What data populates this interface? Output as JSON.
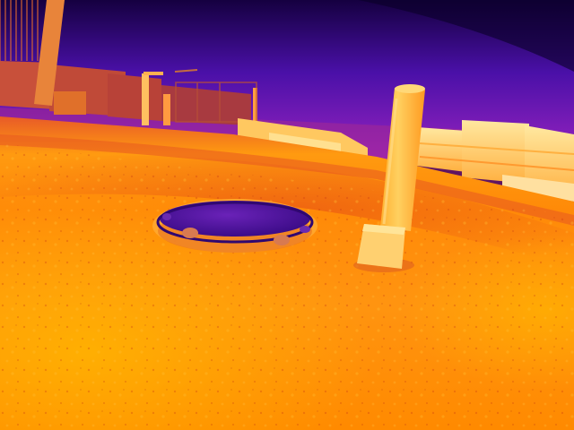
{
  "image": {
    "kind": "thermal-camera-photo",
    "palette": "ironbow",
    "subjects": [
      "manhole-cover",
      "bollard-post",
      "pavement",
      "fence",
      "buildings",
      "light-poles",
      "sky"
    ],
    "colors": {
      "sky_top": "#150040",
      "sky_mid": "#4a10a8",
      "sky_low": "#8a1fc8",
      "ground_hot": "#ffb000",
      "ground_warm": "#ff8000",
      "ground_edge": "#e04820",
      "manhole_cover": "#5a1aa8",
      "manhole_rim": "#3a0a80",
      "bollard": "#ffc848",
      "bollard_base": "#ffd870",
      "building_glow": "#ffe890",
      "building_dark": "#c84a40"
    }
  }
}
